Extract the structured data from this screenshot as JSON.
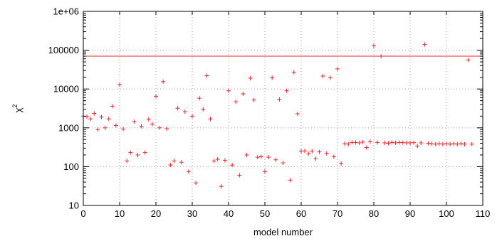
{
  "chart_data": {
    "type": "scatter",
    "xlabel": "model number",
    "ylabel_base": "χ",
    "ylabel_exp": "2",
    "xlim": [
      0,
      110
    ],
    "ylim": [
      10,
      1000000
    ],
    "yscale": "log",
    "grid": true,
    "x_ticks": [
      0,
      10,
      20,
      30,
      40,
      50,
      60,
      70,
      80,
      90,
      100,
      110
    ],
    "y_ticks": [
      {
        "value": 10,
        "label": "10"
      },
      {
        "value": 100,
        "label": "100"
      },
      {
        "value": 1000,
        "label": "1000"
      },
      {
        "value": 10000,
        "label": "10000"
      },
      {
        "value": 100000,
        "label": "100000"
      },
      {
        "value": 1000000,
        "label": "1e+06"
      }
    ],
    "reference_line": {
      "y": 70000
    },
    "color": "#e8262b",
    "points": [
      [
        0,
        2000
      ],
      [
        1,
        1950
      ],
      [
        2,
        1700
      ],
      [
        3,
        2350
      ],
      [
        4,
        900
      ],
      [
        5,
        1900
      ],
      [
        6,
        1000
      ],
      [
        7,
        1700
      ],
      [
        8,
        3600
      ],
      [
        9,
        1150
      ],
      [
        10,
        13000
      ],
      [
        11,
        930
      ],
      [
        12,
        140
      ],
      [
        13,
        230
      ],
      [
        14,
        1450
      ],
      [
        15,
        200
      ],
      [
        16,
        1100
      ],
      [
        17,
        230
      ],
      [
        18,
        1650
      ],
      [
        19,
        1250
      ],
      [
        20,
        6500
      ],
      [
        21,
        1000
      ],
      [
        22,
        15500
      ],
      [
        23,
        950
      ],
      [
        24,
        110
      ],
      [
        25,
        140
      ],
      [
        26,
        3200
      ],
      [
        27,
        130
      ],
      [
        28,
        2600
      ],
      [
        29,
        75
      ],
      [
        30,
        2000
      ],
      [
        31,
        38
      ],
      [
        32,
        5800
      ],
      [
        33,
        3000
      ],
      [
        34,
        22000
      ],
      [
        35,
        1700
      ],
      [
        36,
        140
      ],
      [
        37,
        155
      ],
      [
        38,
        31
      ],
      [
        39,
        145
      ],
      [
        40,
        9000
      ],
      [
        41,
        110
      ],
      [
        42,
        4700
      ],
      [
        43,
        60
      ],
      [
        44,
        7500
      ],
      [
        45,
        200
      ],
      [
        46,
        19000
      ],
      [
        47,
        5200
      ],
      [
        48,
        175
      ],
      [
        49,
        180
      ],
      [
        50,
        75
      ],
      [
        51,
        175
      ],
      [
        52,
        19500
      ],
      [
        53,
        150
      ],
      [
        54,
        5400
      ],
      [
        55,
        125
      ],
      [
        56,
        9000
      ],
      [
        57,
        45
      ],
      [
        58,
        27000
      ],
      [
        59,
        2300
      ],
      [
        60,
        250
      ],
      [
        61,
        255
      ],
      [
        62,
        215
      ],
      [
        63,
        250
      ],
      [
        64,
        160
      ],
      [
        65,
        240
      ],
      [
        66,
        21500
      ],
      [
        67,
        220
      ],
      [
        68,
        19500
      ],
      [
        69,
        180
      ],
      [
        70,
        33000
      ],
      [
        71,
        120
      ],
      [
        72,
        390
      ],
      [
        73,
        380
      ],
      [
        74,
        420
      ],
      [
        75,
        420
      ],
      [
        76,
        410
      ],
      [
        77,
        430
      ],
      [
        78,
        310
      ],
      [
        79,
        440
      ],
      [
        80,
        130000
      ],
      [
        81,
        420
      ],
      [
        82,
        70000
      ],
      [
        83,
        410
      ],
      [
        84,
        400
      ],
      [
        85,
        420
      ],
      [
        86,
        410
      ],
      [
        87,
        420
      ],
      [
        88,
        415
      ],
      [
        89,
        410
      ],
      [
        90,
        410
      ],
      [
        91,
        415
      ],
      [
        92,
        340
      ],
      [
        93,
        410
      ],
      [
        94,
        140000
      ],
      [
        95,
        400
      ],
      [
        96,
        390
      ],
      [
        97,
        380
      ],
      [
        98,
        390
      ],
      [
        99,
        380
      ],
      [
        100,
        390
      ],
      [
        101,
        380
      ],
      [
        102,
        390
      ],
      [
        103,
        380
      ],
      [
        104,
        390
      ],
      [
        105,
        380
      ],
      [
        106,
        56000
      ],
      [
        107,
        380
      ]
    ]
  }
}
